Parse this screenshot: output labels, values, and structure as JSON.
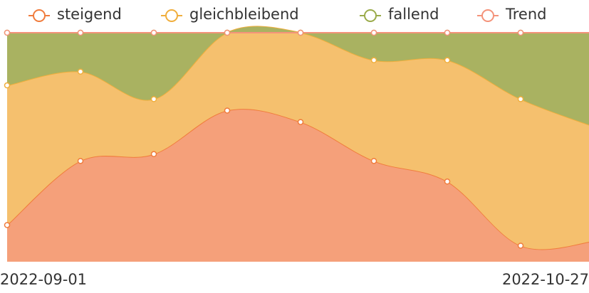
{
  "chart_data": {
    "type": "stacked-area",
    "categories": [
      "2022-09-01",
      null,
      null,
      null,
      null,
      null,
      null,
      null,
      "2022-10-27"
    ],
    "series": [
      {
        "name": "steigend",
        "color": "#f07c3c",
        "fill": "#f5a07a",
        "values": [
          16,
          44,
          47,
          66,
          61,
          44,
          35,
          7,
          9
        ]
      },
      {
        "name": "gleichbleibend",
        "color": "#f0ae3c",
        "fill": "#f5c06e",
        "values": [
          61,
          39,
          24,
          34,
          39,
          44,
          53,
          64,
          50
        ]
      },
      {
        "name": "fallend",
        "color": "#9aab4a",
        "fill": "#a9b261",
        "values": [
          23,
          17,
          29,
          0,
          0,
          12,
          12,
          29,
          41
        ]
      },
      {
        "name": "Trend",
        "color": "#f4937a",
        "values": [
          0,
          0,
          0,
          0,
          0,
          0,
          0,
          0,
          0
        ]
      }
    ]
  }
}
